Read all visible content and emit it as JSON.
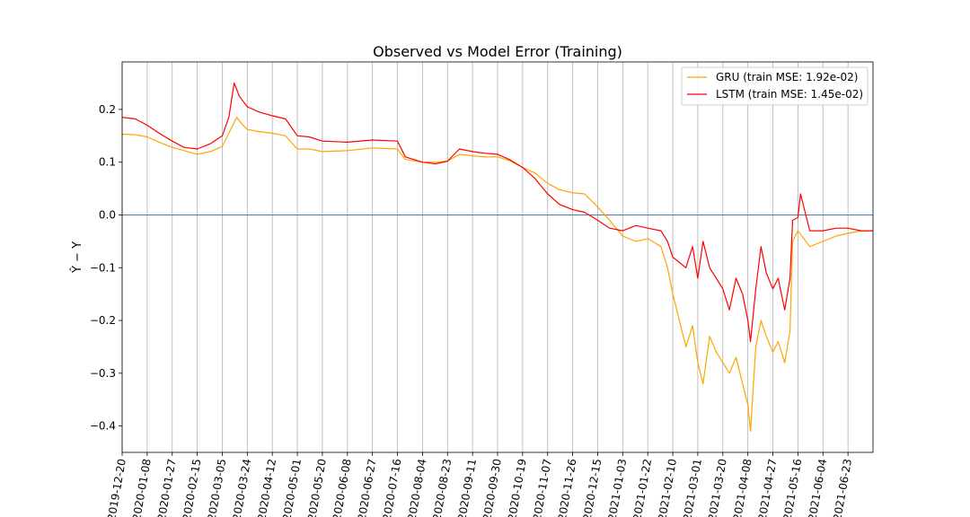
{
  "chart_data": {
    "type": "line",
    "title": "Observed vs Model Error (Training)",
    "xlabel": "",
    "ylabel": "Ŷ − Y",
    "ylim": [
      -0.45,
      0.29
    ],
    "xlim": [
      "2019-12-20",
      "2021-07-12"
    ],
    "x_ticks": [
      "2019-12-20",
      "2020-01-08",
      "2020-01-27",
      "2020-02-15",
      "2020-03-05",
      "2020-03-24",
      "2020-04-12",
      "2020-05-01",
      "2020-05-20",
      "2020-06-08",
      "2020-06-27",
      "2020-07-16",
      "2020-08-04",
      "2020-08-23",
      "2020-09-11",
      "2020-09-30",
      "2020-10-19",
      "2020-11-07",
      "2020-11-26",
      "2020-12-15",
      "2021-01-03",
      "2021-01-22",
      "2021-02-10",
      "2021-03-01",
      "2021-03-20",
      "2021-04-08",
      "2021-04-27",
      "2021-05-16",
      "2021-06-04",
      "2021-06-23"
    ],
    "y_ticks": [
      0.2,
      0.1,
      0.0,
      -0.1,
      -0.2,
      -0.3,
      -0.4
    ],
    "y_tick_labels": [
      "0.2",
      "0.1",
      "0.0",
      "−0.1",
      "−0.2",
      "−0.3",
      "−0.4"
    ],
    "grid": "vertical",
    "legend_position": "upper right",
    "reference_line": {
      "y": 0,
      "color": "#4c7ea8"
    },
    "series": [
      {
        "name": "GRU (train MSE: 1.92e-02)",
        "color": "#ffa500",
        "points": [
          [
            "2019-12-20",
            0.153
          ],
          [
            "2019-12-30",
            0.152
          ],
          [
            "2020-01-08",
            0.148
          ],
          [
            "2020-01-17",
            0.138
          ],
          [
            "2020-01-27",
            0.128
          ],
          [
            "2020-02-05",
            0.122
          ],
          [
            "2020-02-15",
            0.115
          ],
          [
            "2020-02-25",
            0.12
          ],
          [
            "2020-03-05",
            0.13
          ],
          [
            "2020-03-12",
            0.165
          ],
          [
            "2020-03-16",
            0.185
          ],
          [
            "2020-03-20",
            0.172
          ],
          [
            "2020-03-24",
            0.162
          ],
          [
            "2020-04-02",
            0.158
          ],
          [
            "2020-04-12",
            0.155
          ],
          [
            "2020-04-22",
            0.15
          ],
          [
            "2020-05-01",
            0.125
          ],
          [
            "2020-05-10",
            0.125
          ],
          [
            "2020-05-20",
            0.12
          ],
          [
            "2020-06-08",
            0.122
          ],
          [
            "2020-06-27",
            0.127
          ],
          [
            "2020-07-16",
            0.125
          ],
          [
            "2020-07-22",
            0.105
          ],
          [
            "2020-08-04",
            0.1
          ],
          [
            "2020-08-14",
            0.1
          ],
          [
            "2020-08-23",
            0.102
          ],
          [
            "2020-09-01",
            0.115
          ],
          [
            "2020-09-11",
            0.112
          ],
          [
            "2020-09-20",
            0.11
          ],
          [
            "2020-09-30",
            0.11
          ],
          [
            "2020-10-09",
            0.103
          ],
          [
            "2020-10-19",
            0.09
          ],
          [
            "2020-10-28",
            0.08
          ],
          [
            "2020-11-07",
            0.06
          ],
          [
            "2020-11-16",
            0.048
          ],
          [
            "2020-11-26",
            0.042
          ],
          [
            "2020-12-05",
            0.04
          ],
          [
            "2020-12-15",
            0.015
          ],
          [
            "2020-12-24",
            -0.01
          ],
          [
            "2021-01-03",
            -0.04
          ],
          [
            "2021-01-13",
            -0.05
          ],
          [
            "2021-01-22",
            -0.045
          ],
          [
            "2021-02-01",
            -0.06
          ],
          [
            "2021-02-06",
            -0.1
          ],
          [
            "2021-02-10",
            -0.15
          ],
          [
            "2021-02-15",
            -0.2
          ],
          [
            "2021-02-20",
            -0.25
          ],
          [
            "2021-02-25",
            -0.21
          ],
          [
            "2021-03-01",
            -0.28
          ],
          [
            "2021-03-05",
            -0.32
          ],
          [
            "2021-03-10",
            -0.23
          ],
          [
            "2021-03-15",
            -0.26
          ],
          [
            "2021-03-20",
            -0.28
          ],
          [
            "2021-03-25",
            -0.3
          ],
          [
            "2021-03-30",
            -0.27
          ],
          [
            "2021-04-04",
            -0.32
          ],
          [
            "2021-04-08",
            -0.36
          ],
          [
            "2021-04-10",
            -0.41
          ],
          [
            "2021-04-14",
            -0.25
          ],
          [
            "2021-04-18",
            -0.2
          ],
          [
            "2021-04-22",
            -0.23
          ],
          [
            "2021-04-27",
            -0.26
          ],
          [
            "2021-05-01",
            -0.24
          ],
          [
            "2021-05-06",
            -0.28
          ],
          [
            "2021-05-10",
            -0.22
          ],
          [
            "2021-05-12",
            -0.05
          ],
          [
            "2021-05-16",
            -0.03
          ],
          [
            "2021-05-25",
            -0.06
          ],
          [
            "2021-06-04",
            -0.05
          ],
          [
            "2021-06-14",
            -0.04
          ],
          [
            "2021-06-23",
            -0.035
          ],
          [
            "2021-07-03",
            -0.03
          ],
          [
            "2021-07-12",
            -0.03
          ]
        ]
      },
      {
        "name": "LSTM (train MSE: 1.45e-02)",
        "color": "#ff0000",
        "points": [
          [
            "2019-12-20",
            0.185
          ],
          [
            "2019-12-30",
            0.182
          ],
          [
            "2020-01-08",
            0.17
          ],
          [
            "2020-01-17",
            0.155
          ],
          [
            "2020-01-27",
            0.14
          ],
          [
            "2020-02-05",
            0.128
          ],
          [
            "2020-02-15",
            0.125
          ],
          [
            "2020-02-25",
            0.135
          ],
          [
            "2020-03-05",
            0.15
          ],
          [
            "2020-03-10",
            0.185
          ],
          [
            "2020-03-14",
            0.25
          ],
          [
            "2020-03-18",
            0.225
          ],
          [
            "2020-03-24",
            0.205
          ],
          [
            "2020-04-02",
            0.195
          ],
          [
            "2020-04-12",
            0.188
          ],
          [
            "2020-04-22",
            0.182
          ],
          [
            "2020-05-01",
            0.15
          ],
          [
            "2020-05-10",
            0.148
          ],
          [
            "2020-05-20",
            0.14
          ],
          [
            "2020-06-08",
            0.138
          ],
          [
            "2020-06-27",
            0.142
          ],
          [
            "2020-07-16",
            0.14
          ],
          [
            "2020-07-22",
            0.11
          ],
          [
            "2020-08-04",
            0.1
          ],
          [
            "2020-08-14",
            0.097
          ],
          [
            "2020-08-23",
            0.102
          ],
          [
            "2020-09-01",
            0.125
          ],
          [
            "2020-09-11",
            0.12
          ],
          [
            "2020-09-20",
            0.117
          ],
          [
            "2020-09-30",
            0.115
          ],
          [
            "2020-10-09",
            0.105
          ],
          [
            "2020-10-19",
            0.09
          ],
          [
            "2020-10-28",
            0.07
          ],
          [
            "2020-11-07",
            0.04
          ],
          [
            "2020-11-16",
            0.02
          ],
          [
            "2020-11-26",
            0.01
          ],
          [
            "2020-12-05",
            0.005
          ],
          [
            "2020-12-15",
            -0.01
          ],
          [
            "2020-12-24",
            -0.025
          ],
          [
            "2021-01-03",
            -0.03
          ],
          [
            "2021-01-13",
            -0.02
          ],
          [
            "2021-01-22",
            -0.025
          ],
          [
            "2021-02-01",
            -0.03
          ],
          [
            "2021-02-06",
            -0.05
          ],
          [
            "2021-02-10",
            -0.08
          ],
          [
            "2021-02-15",
            -0.09
          ],
          [
            "2021-02-20",
            -0.1
          ],
          [
            "2021-02-25",
            -0.06
          ],
          [
            "2021-03-01",
            -0.12
          ],
          [
            "2021-03-05",
            -0.05
          ],
          [
            "2021-03-10",
            -0.1
          ],
          [
            "2021-03-15",
            -0.12
          ],
          [
            "2021-03-20",
            -0.14
          ],
          [
            "2021-03-25",
            -0.18
          ],
          [
            "2021-03-30",
            -0.12
          ],
          [
            "2021-04-04",
            -0.15
          ],
          [
            "2021-04-08",
            -0.2
          ],
          [
            "2021-04-10",
            -0.24
          ],
          [
            "2021-04-14",
            -0.14
          ],
          [
            "2021-04-18",
            -0.06
          ],
          [
            "2021-04-22",
            -0.11
          ],
          [
            "2021-04-27",
            -0.14
          ],
          [
            "2021-05-01",
            -0.12
          ],
          [
            "2021-05-06",
            -0.18
          ],
          [
            "2021-05-10",
            -0.12
          ],
          [
            "2021-05-12",
            -0.01
          ],
          [
            "2021-05-16",
            -0.005
          ],
          [
            "2021-05-18",
            0.04
          ],
          [
            "2021-05-25",
            -0.03
          ],
          [
            "2021-06-04",
            -0.03
          ],
          [
            "2021-06-14",
            -0.025
          ],
          [
            "2021-06-23",
            -0.025
          ],
          [
            "2021-07-03",
            -0.03
          ],
          [
            "2021-07-12",
            -0.03
          ]
        ]
      }
    ]
  }
}
